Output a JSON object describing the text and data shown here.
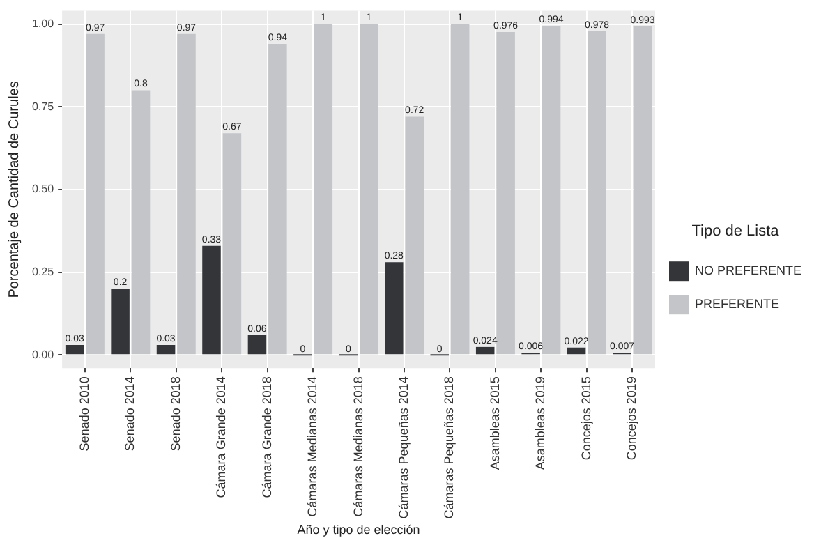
{
  "chart_data": {
    "type": "bar",
    "xlabel": "Año y tipo de elección",
    "ylabel": "Porcentaje de Cantidad de Curules",
    "legend_title": "Tipo de Lista",
    "categories": [
      "Senado 2010",
      "Senado 2014",
      "Senado 2018",
      "Cámara Grande 2014",
      "Cámara Grande 2018",
      "Cámaras Medianas 2014",
      "Cámaras Medianas 2018",
      "Cámaras Pequeñas 2014",
      "Cámaras Pequeñas 2018",
      "Asambleas 2015",
      "Asambleas 2019",
      "Concejos 2015",
      "Concejos 2019"
    ],
    "series": [
      {
        "name": "NO PREFERENTE",
        "color": "#333538",
        "values": [
          0.03,
          0.2,
          0.03,
          0.33,
          0.06,
          0,
          0,
          0.28,
          0,
          0.024,
          0.006,
          0.022,
          0.007
        ]
      },
      {
        "name": "PREFERENTE",
        "color": "#c3c5c8",
        "values": [
          0.97,
          0.8,
          0.97,
          0.67,
          0.94,
          1,
          1,
          0.72,
          1,
          0.976,
          0.994,
          0.978,
          0.993
        ]
      }
    ],
    "ylim": [
      -0.04,
      1.04
    ],
    "yticks": [
      {
        "value": 0,
        "label": "0.00"
      },
      {
        "value": 0.25,
        "label": "0.25"
      },
      {
        "value": 0.5,
        "label": "0.50"
      },
      {
        "value": 0.75,
        "label": "0.75"
      },
      {
        "value": 1,
        "label": "1.00"
      }
    ],
    "grid": true,
    "legend": "right",
    "data_labels": true
  }
}
